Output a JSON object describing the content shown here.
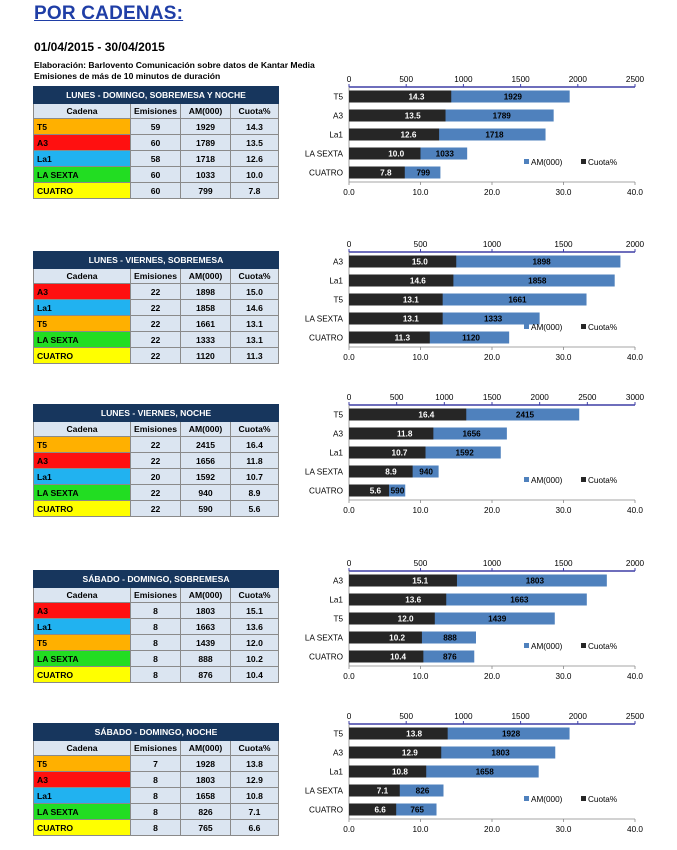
{
  "page": {
    "title": "POR CADENAS:",
    "period": "01/04/2015 - 30/04/2015",
    "note1": "Elaboración:  Barlovento Comunicación  sobre datos de Kantar Media",
    "note2": "Emisiones de más de 10 minutos de duración"
  },
  "table_headers": {
    "cadena": "Cadena",
    "emisiones": "Emisiones",
    "am": "AM(000)",
    "cuota": "Cuota%"
  },
  "legend": {
    "am": "AM(000)",
    "cuota": "Cuota%"
  },
  "colors": {
    "am_bar": "#4f81bd",
    "cuota_bar": "#262626",
    "axis": "#3f3fa6",
    "T5": "#ffb000",
    "A3": "#ff1010",
    "La1": "#21b2f0",
    "LA SEXTA": "#22dd22",
    "CUATRO": "#ffff00"
  },
  "chart_data": [
    {
      "type": "bar",
      "title": "LUNES - DOMINGO, SOBREMESA Y NOCHE",
      "categories": [
        "T5",
        "A3",
        "La1",
        "LA SEXTA",
        "CUATRO"
      ],
      "emisiones": [
        59,
        60,
        58,
        60,
        60
      ],
      "series": [
        {
          "name": "AM(000)",
          "values": [
            1929,
            1789,
            1718,
            1033,
            799
          ],
          "axis_range": [
            0,
            2500
          ],
          "ticks": [
            0,
            500,
            1000,
            1500,
            2000,
            2500
          ]
        },
        {
          "name": "Cuota%",
          "values": [
            14.3,
            13.5,
            12.6,
            10.0,
            7.8
          ],
          "axis_range": [
            0,
            40
          ],
          "ticks": [
            0,
            10,
            20,
            30,
            40
          ]
        }
      ]
    },
    {
      "type": "bar",
      "title": "LUNES - VIERNES, SOBREMESA",
      "categories": [
        "A3",
        "La1",
        "T5",
        "LA SEXTA",
        "CUATRO"
      ],
      "emisiones": [
        22,
        22,
        22,
        22,
        22
      ],
      "series": [
        {
          "name": "AM(000)",
          "values": [
            1898,
            1858,
            1661,
            1333,
            1120
          ],
          "axis_range": [
            0,
            2000
          ],
          "ticks": [
            0,
            500,
            1000,
            1500,
            2000
          ]
        },
        {
          "name": "Cuota%",
          "values": [
            15.0,
            14.6,
            13.1,
            13.1,
            11.3
          ],
          "axis_range": [
            0,
            40
          ],
          "ticks": [
            0,
            10,
            20,
            30,
            40
          ]
        }
      ]
    },
    {
      "type": "bar",
      "title": "LUNES - VIERNES, NOCHE",
      "categories": [
        "T5",
        "A3",
        "La1",
        "LA SEXTA",
        "CUATRO"
      ],
      "emisiones": [
        22,
        22,
        20,
        22,
        22
      ],
      "series": [
        {
          "name": "AM(000)",
          "values": [
            2415,
            1656,
            1592,
            940,
            590
          ],
          "axis_range": [
            0,
            3000
          ],
          "ticks": [
            0,
            500,
            1000,
            1500,
            2000,
            2500,
            3000
          ]
        },
        {
          "name": "Cuota%",
          "values": [
            16.4,
            11.8,
            10.7,
            8.9,
            5.6
          ],
          "axis_range": [
            0,
            40
          ],
          "ticks": [
            0,
            10,
            20,
            30,
            40
          ]
        }
      ]
    },
    {
      "type": "bar",
      "title": "SÁBADO - DOMINGO, SOBREMESA",
      "categories": [
        "A3",
        "La1",
        "T5",
        "LA SEXTA",
        "CUATRO"
      ],
      "emisiones": [
        8,
        8,
        8,
        8,
        8
      ],
      "series": [
        {
          "name": "AM(000)",
          "values": [
            1803,
            1663,
            1439,
            888,
            876
          ],
          "axis_range": [
            0,
            2000
          ],
          "ticks": [
            0,
            500,
            1000,
            1500,
            2000
          ]
        },
        {
          "name": "Cuota%",
          "values": [
            15.1,
            13.6,
            12.0,
            10.2,
            10.4
          ],
          "axis_range": [
            0,
            40
          ],
          "ticks": [
            0,
            10,
            20,
            30,
            40
          ]
        }
      ]
    },
    {
      "type": "bar",
      "title": "SÁBADO - DOMINGO, NOCHE",
      "categories": [
        "T5",
        "A3",
        "La1",
        "LA SEXTA",
        "CUATRO"
      ],
      "emisiones": [
        7,
        8,
        8,
        8,
        8
      ],
      "series": [
        {
          "name": "AM(000)",
          "values": [
            1928,
            1803,
            1658,
            826,
            765
          ],
          "axis_range": [
            0,
            2500
          ],
          "ticks": [
            0,
            500,
            1000,
            1500,
            2000,
            2500
          ]
        },
        {
          "name": "Cuota%",
          "values": [
            13.8,
            12.9,
            10.8,
            7.1,
            6.6
          ],
          "axis_range": [
            0,
            40
          ],
          "ticks": [
            0,
            10,
            20,
            30,
            40
          ]
        }
      ]
    }
  ]
}
